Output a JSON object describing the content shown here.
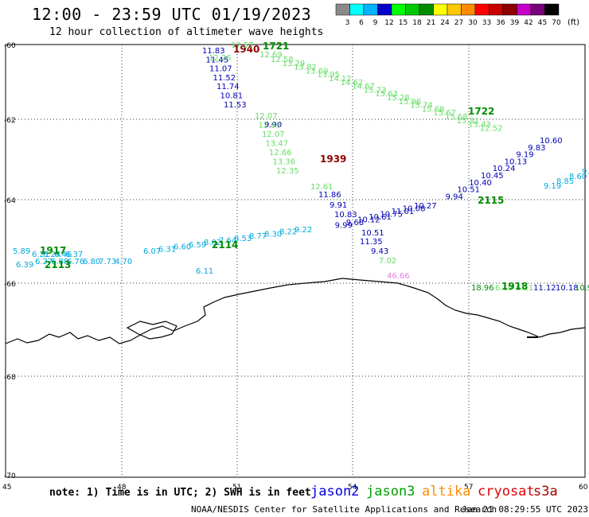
{
  "header": {
    "title": "12:00 - 23:59 UTC 01/19/2023",
    "subtitle": "12 hour collection of altimeter wave heights"
  },
  "legend": {
    "unit": "(ft)",
    "bins": [
      {
        "label": "3",
        "color": "#8a8a8a"
      },
      {
        "label": "6",
        "color": "#00ffff"
      },
      {
        "label": "9",
        "color": "#00b4ff"
      },
      {
        "label": "12",
        "color": "#0000c8"
      },
      {
        "label": "15",
        "color": "#00ff00"
      },
      {
        "label": "18",
        "color": "#00c800"
      },
      {
        "label": "21",
        "color": "#008c00"
      },
      {
        "label": "24",
        "color": "#ffff00"
      },
      {
        "label": "27",
        "color": "#ffc800"
      },
      {
        "label": "30",
        "color": "#ff8c00"
      },
      {
        "label": "33",
        "color": "#ff0000"
      },
      {
        "label": "36",
        "color": "#c80000"
      },
      {
        "label": "39",
        "color": "#8c0000"
      },
      {
        "label": "42",
        "color": "#c800c8"
      },
      {
        "label": "45",
        "color": "#780078"
      },
      {
        "label": "70",
        "color": "#000000"
      }
    ]
  },
  "axes": {
    "lat_labels": [
      "-60",
      "-62",
      "-64",
      "-66",
      "-68",
      "-70"
    ],
    "lon_labels": [
      "45",
      "48",
      "51",
      "54",
      "57",
      "60"
    ]
  },
  "tracks": {
    "track_a": {
      "color": "#0000b4",
      "time": "1940",
      "time_color": "#8c0000",
      "values": [
        "11.83",
        "11.45",
        "11.07",
        "11.52",
        "11.74",
        "10.81",
        "11.53",
        "9.90",
        "9.91",
        "10.83",
        "10.51",
        "11.35",
        "9.43"
      ]
    },
    "track_a_green": {
      "color": "#66dd66",
      "values": [
        "12.26",
        "12.07",
        "12.03",
        "12.07",
        "13.47",
        "12.66",
        "13.36",
        "12.35",
        "12.61",
        "7.02"
      ]
    },
    "track_a_extra": {
      "value": "11.86",
      "time": "1939",
      "time_color": "#8c0000"
    },
    "track_b": {
      "color": "#66dd66",
      "time_top": "1721",
      "time_mid": "1722",
      "time_color": "#008c00",
      "values": [
        "17.57",
        "12.69",
        "12.58",
        "13.29",
        "13.82",
        "13.69",
        "13.95",
        "14.12",
        "14.62",
        "14.67",
        "15.73",
        "15.63",
        "15.28",
        "15.96",
        "15.74",
        "15.68",
        "15.67",
        "15.68",
        "15.31",
        "15.43",
        "12.52"
      ]
    },
    "track_c": {
      "color": "#0000b4",
      "time": "2115",
      "time_color": "#008c00",
      "values": [
        "10.60",
        "9.83",
        "9.19",
        "10.13",
        "10.24",
        "10.45",
        "10.40",
        "10.51",
        "9.94",
        "10.27",
        "10.08",
        "11.01",
        "10.75",
        "10.61",
        "10.12",
        "9.68",
        "9.99"
      ]
    },
    "track_c_cyan": {
      "color": "#00aadd",
      "time": "2114",
      "values": [
        "9.",
        "8.60",
        "8.85",
        "9.19",
        "9.22",
        "8.22",
        "8.30",
        "8.77",
        "8.53",
        "7.64",
        "8.02",
        "6.59",
        "6.60",
        "6.31",
        "6.07",
        "6.11"
      ]
    },
    "track_d": {
      "color": "#00aadd",
      "time_top": "1917",
      "time_bottom": "2113",
      "time_color": "#008c00",
      "values": [
        "5.89",
        "6.21",
        "6.24",
        "6.46",
        "6.37",
        "6.39",
        "6.27",
        "6.88",
        "6.76",
        "6.80",
        "7.73",
        "4.70"
      ]
    },
    "track_e": {
      "time": "1918",
      "time_color": "#008c00",
      "values": [
        "18.96",
        "6.19",
        "6.11",
        "11.12",
        "10.18",
        "10.9"
      ]
    },
    "spike": {
      "value": "46.66",
      "color": "#e080e0"
    }
  },
  "footer": {
    "note": "note: 1) Time is in UTC; 2) SWH is in feet",
    "satellites": [
      {
        "name": "jason2",
        "color": "#0000dd"
      },
      {
        "name": "jason3",
        "color": "#00a000"
      },
      {
        "name": "altika",
        "color": "#ff8c00"
      },
      {
        "name": "cryosat",
        "color": "#dd0000"
      },
      {
        "name": "s3a",
        "color": "#aa0000"
      }
    ],
    "credit": "NOAA/NESDIS Center for Satellite Applications and Research",
    "timestamp": "Jan 21 08:29:55 UTC 2023"
  }
}
